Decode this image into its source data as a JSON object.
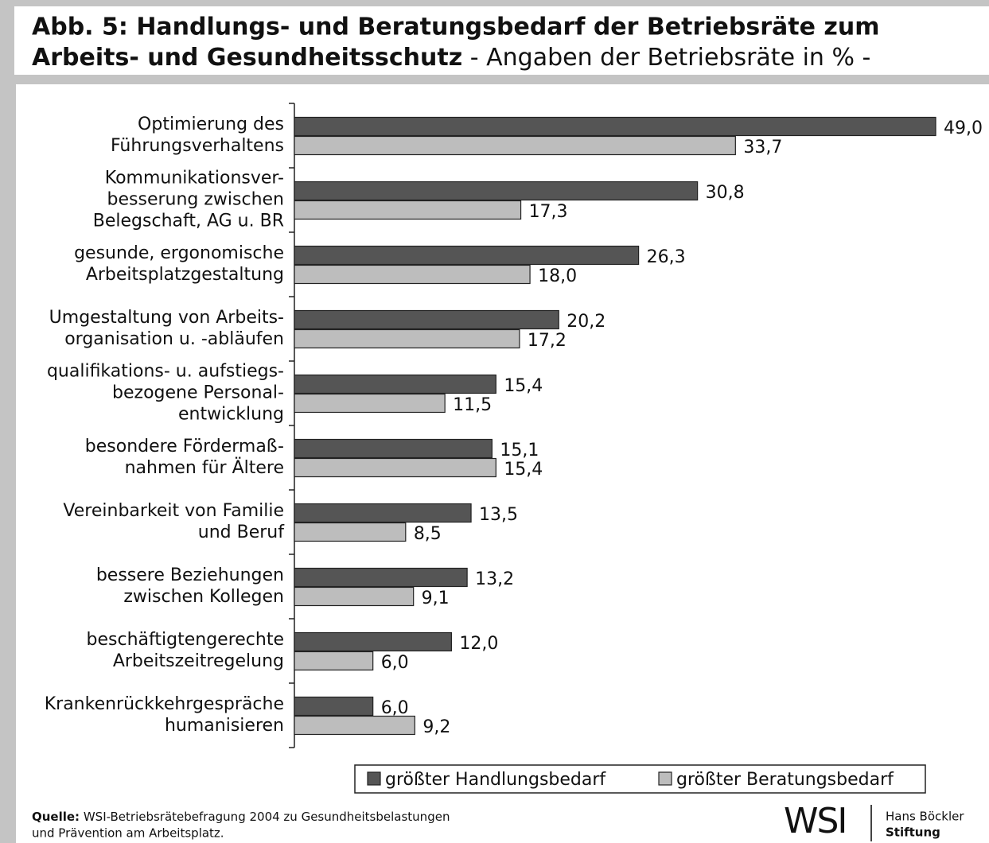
{
  "chart_data": {
    "type": "barh",
    "title": "Abb. 5: Handlungs- und Beratungsbedarf der Betriebsräte zum",
    "title_line2_bold": "Arbeits- und Gesundheitsschutz",
    "subtitle": "- Angaben der Betriebsräte in % -",
    "categories": [
      [
        "Optimierung des",
        "Führungsverhaltens"
      ],
      [
        "Kommunikationsver-",
        "besserung zwischen",
        "Belegschaft, AG u. BR"
      ],
      [
        "gesunde, ergonomische",
        "Arbeitsplatzgestaltung"
      ],
      [
        "Umgestaltung von Arbeits-",
        "organisation u. -abläufen"
      ],
      [
        "qualifikations- u. aufstiegs-",
        "bezogene Personal-",
        "entwicklung"
      ],
      [
        "besondere Fördermaß-",
        "nahmen für Ältere"
      ],
      [
        "Vereinbarkeit von Familie",
        "und Beruf"
      ],
      [
        "bessere Beziehungen",
        "zwischen Kollegen"
      ],
      [
        "beschäftigtengerechte",
        "Arbeitszeitregelung"
      ],
      [
        "Krankenrückkehrgespräche",
        "humanisieren"
      ]
    ],
    "series": [
      {
        "name": "größter Handlungsbedarf",
        "color": "#555555",
        "values": [
          49.0,
          30.8,
          26.3,
          20.2,
          15.4,
          15.1,
          13.5,
          13.2,
          12.0,
          6.0
        ],
        "value_labels": [
          "49,0",
          "30,8",
          "26,3",
          "20,2",
          "15,4",
          "15,1",
          "13,5",
          "13,2",
          "12,0",
          "6,0"
        ]
      },
      {
        "name": "größter Beratungsbedarf",
        "color": "#bdbdbd",
        "values": [
          33.7,
          17.3,
          18.0,
          17.2,
          11.5,
          15.4,
          8.5,
          9.1,
          6.0,
          9.2
        ],
        "value_labels": [
          "33,7",
          "17,3",
          "18,0",
          "17,2",
          "11,5",
          "15,4",
          "8,5",
          "9,1",
          "6,0",
          "9,2"
        ]
      }
    ],
    "source_label": "Quelle:",
    "source_lines": [
      "WSI-Betriebsrätebefragung 2004 zu Gesundheitsbelastungen",
      "und Prävention am Arbeitsplatz."
    ],
    "logo": "WSI",
    "logo_org": [
      "Hans Böckler",
      "Stiftung"
    ]
  }
}
